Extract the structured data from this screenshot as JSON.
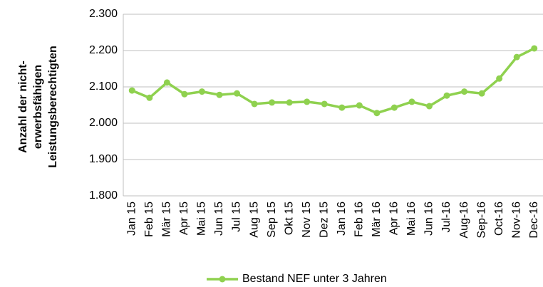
{
  "chart_data": {
    "type": "line",
    "ylabel": [
      "Anzahl der nicht-",
      "erwerbsfähigen",
      "Leistungsberechtigten"
    ],
    "categories": [
      "Jan 15",
      "Feb 15",
      "Mär 15",
      "Apr 15",
      "Mai 15",
      "Jun 15",
      "Jul 15",
      "Aug 15",
      "Sep 15",
      "Okt 15",
      "Nov 15",
      "Dez 15",
      "Jan 16",
      "Feb 16",
      "Mär 16",
      "Apr 16",
      "Mai 16",
      "Jun 16",
      "Jul-16",
      "Aug-16",
      "Sep-16",
      "Oct-16",
      "Nov-16",
      "Dec-16"
    ],
    "series": [
      {
        "name": "Bestand NEF unter 3 Jahren",
        "color": "#8fd14f",
        "values": [
          2090,
          2070,
          2112,
          2080,
          2087,
          2078,
          2082,
          2053,
          2057,
          2057,
          2059,
          2053,
          2043,
          2049,
          2028,
          2043,
          2059,
          2047,
          2076,
          2087,
          2082,
          2123,
          2182,
          2206
        ]
      }
    ],
    "ylim": [
      1800,
      2300
    ],
    "yticks": [
      {
        "value": 1800,
        "label": "1.800"
      },
      {
        "value": 1900,
        "label": "1.900"
      },
      {
        "value": 2000,
        "label": "2.000"
      },
      {
        "value": 2100,
        "label": "2.100"
      },
      {
        "value": 2200,
        "label": "2.200"
      },
      {
        "value": 2300,
        "label": "2.300"
      }
    ],
    "grid": true,
    "legend": "bottom"
  }
}
